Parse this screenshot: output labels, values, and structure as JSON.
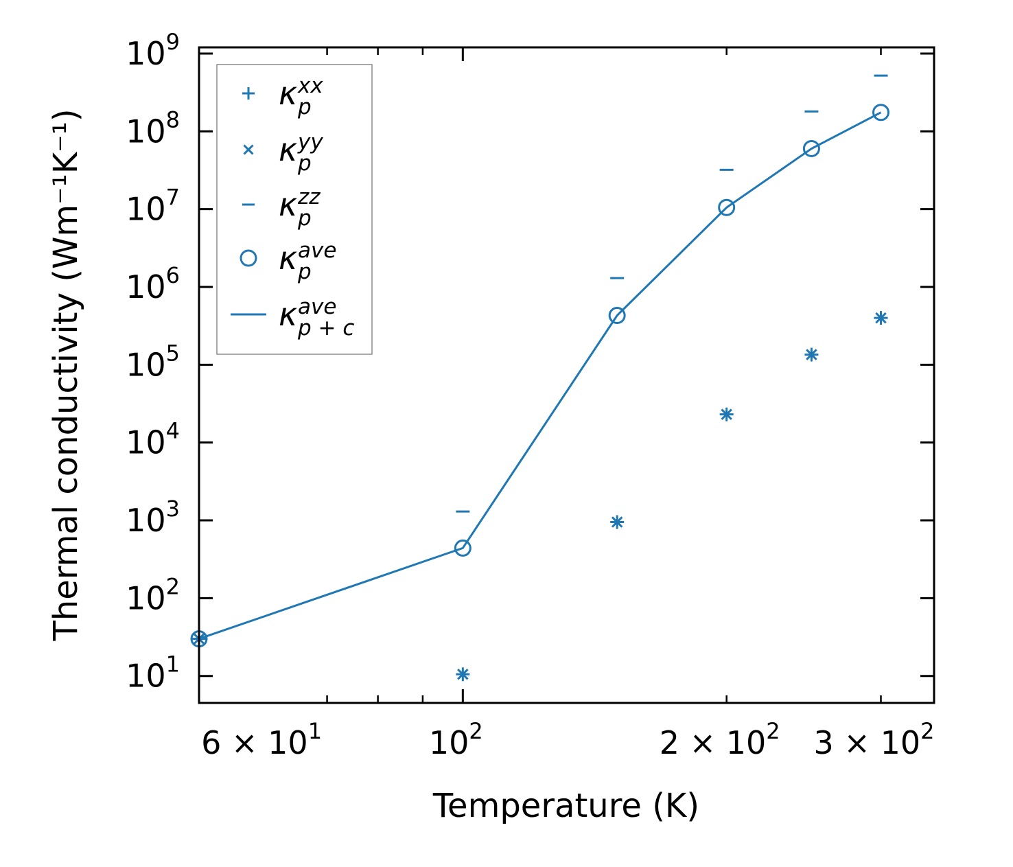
{
  "chart_data": {
    "type": "scatter",
    "x_scale": "log",
    "y_scale": "log",
    "xlabel": "Temperature (K)",
    "ylabel": "Thermal conductivity (Wm⁻¹K⁻¹)",
    "xlim": [
      50,
      345
    ],
    "ylim": [
      4.5,
      1200000000.0
    ],
    "x": [
      50,
      100,
      150,
      200,
      250,
      300
    ],
    "series": [
      {
        "name": "kappa_p^xx",
        "label_base": "κ",
        "label_sub": "p",
        "label_sup": "xx",
        "marker": "plus",
        "values": [
          30,
          10.5,
          950,
          23000,
          135000,
          400000
        ]
      },
      {
        "name": "kappa_p^yy",
        "label_base": "κ",
        "label_sub": "p",
        "label_sup": "yy",
        "marker": "x",
        "values": [
          30,
          10.5,
          950,
          23000,
          135000,
          400000
        ]
      },
      {
        "name": "kappa_p^zz",
        "label_base": "κ",
        "label_sub": "p",
        "label_sup": "zz",
        "marker": "hline",
        "values": [
          30,
          1300,
          1300000,
          32000000,
          180000000,
          520000000
        ]
      },
      {
        "name": "kappa_p^ave",
        "label_base": "κ",
        "label_sub": "p",
        "label_sup": "ave",
        "marker": "circle",
        "values": [
          30,
          440,
          430000,
          10500000,
          60000000,
          175000000
        ]
      },
      {
        "name": "kappa_p+c^ave",
        "label_base": "κ",
        "label_sub": "p + c",
        "label_sup": "ave",
        "marker": "line",
        "values": [
          30,
          440,
          430000,
          10500000,
          60000000,
          175000000
        ]
      }
    ],
    "y_ticks": [
      {
        "value": 10,
        "base": "10",
        "exp": "1"
      },
      {
        "value": 100,
        "base": "10",
        "exp": "2"
      },
      {
        "value": 1000,
        "base": "10",
        "exp": "3"
      },
      {
        "value": 10000,
        "base": "10",
        "exp": "4"
      },
      {
        "value": 100000,
        "base": "10",
        "exp": "5"
      },
      {
        "value": 1000000,
        "base": "10",
        "exp": "6"
      },
      {
        "value": 10000000,
        "base": "10",
        "exp": "7"
      },
      {
        "value": 100000000,
        "base": "10",
        "exp": "8"
      },
      {
        "value": 1000000000,
        "base": "10",
        "exp": "9"
      }
    ],
    "x_ticks": [
      {
        "value": 60,
        "base": "6 × 10",
        "exp": "1"
      },
      {
        "value": 100,
        "base": "10",
        "exp": "2"
      },
      {
        "value": 200,
        "base": "2 × 10",
        "exp": "2"
      },
      {
        "value": 300,
        "base": "3 × 10",
        "exp": "2"
      }
    ],
    "x_minor_ticks": [
      50,
      70,
      80,
      90,
      200,
      300
    ],
    "legend_position": "upper-left",
    "color": "#1f77b4"
  }
}
